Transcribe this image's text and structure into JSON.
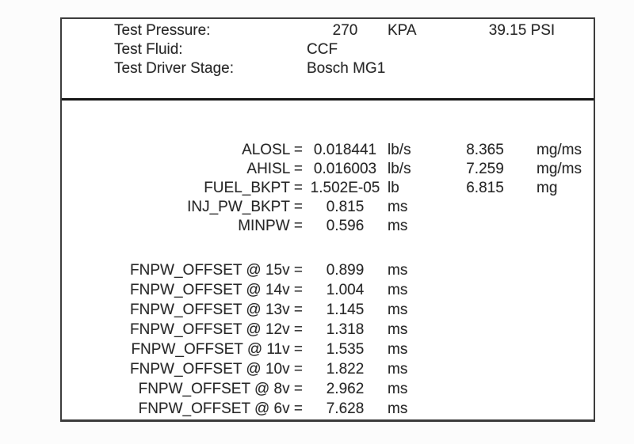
{
  "test_info": {
    "pressure": {
      "label": "Test Pressure:",
      "value": "270",
      "unit": "KPA",
      "value_alt": "39.15 PSI"
    },
    "fluid": {
      "label": "Test Fluid:",
      "value": "CCF"
    },
    "driver_stage": {
      "label": "Test Driver Stage:",
      "value": "Bosch MG1"
    }
  },
  "parameters": [
    {
      "label": "ALOSL =",
      "value": "0.018441",
      "unit": "lb/s",
      "value2": "8.365",
      "unit2": "mg/ms"
    },
    {
      "label": "AHISL =",
      "value": "0.016003",
      "unit": "lb/s",
      "value2": "7.259",
      "unit2": "mg/ms"
    },
    {
      "label": "FUEL_BKPT =",
      "value": "1.502E-05",
      "unit": "lb",
      "value2": "6.815",
      "unit2": "mg"
    },
    {
      "label": "INJ_PW_BKPT =",
      "value": "0.815",
      "unit": "ms",
      "value2": "",
      "unit2": ""
    },
    {
      "label": "MINPW =",
      "value": "0.596",
      "unit": "ms",
      "value2": "",
      "unit2": ""
    }
  ],
  "fnpw_offsets": [
    {
      "label": "FNPW_OFFSET @ 15v =",
      "value": "0.899",
      "unit": "ms"
    },
    {
      "label": "FNPW_OFFSET @ 14v =",
      "value": "1.004",
      "unit": "ms"
    },
    {
      "label": "FNPW_OFFSET @ 13v =",
      "value": "1.145",
      "unit": "ms"
    },
    {
      "label": "FNPW_OFFSET @ 12v =",
      "value": "1.318",
      "unit": "ms"
    },
    {
      "label": "FNPW_OFFSET @ 11v =",
      "value": "1.535",
      "unit": "ms"
    },
    {
      "label": "FNPW_OFFSET @ 10v =",
      "value": "1.822",
      "unit": "ms"
    },
    {
      "label": "FNPW_OFFSET @ 8v =",
      "value": "2.962",
      "unit": "ms"
    },
    {
      "label": "FNPW_OFFSET @ 6v =",
      "value": "7.628",
      "unit": "ms"
    }
  ],
  "colors": {
    "text": "#272727",
    "border": "#3c3c3c",
    "divider": "#141414",
    "background": "#ffffff"
  }
}
